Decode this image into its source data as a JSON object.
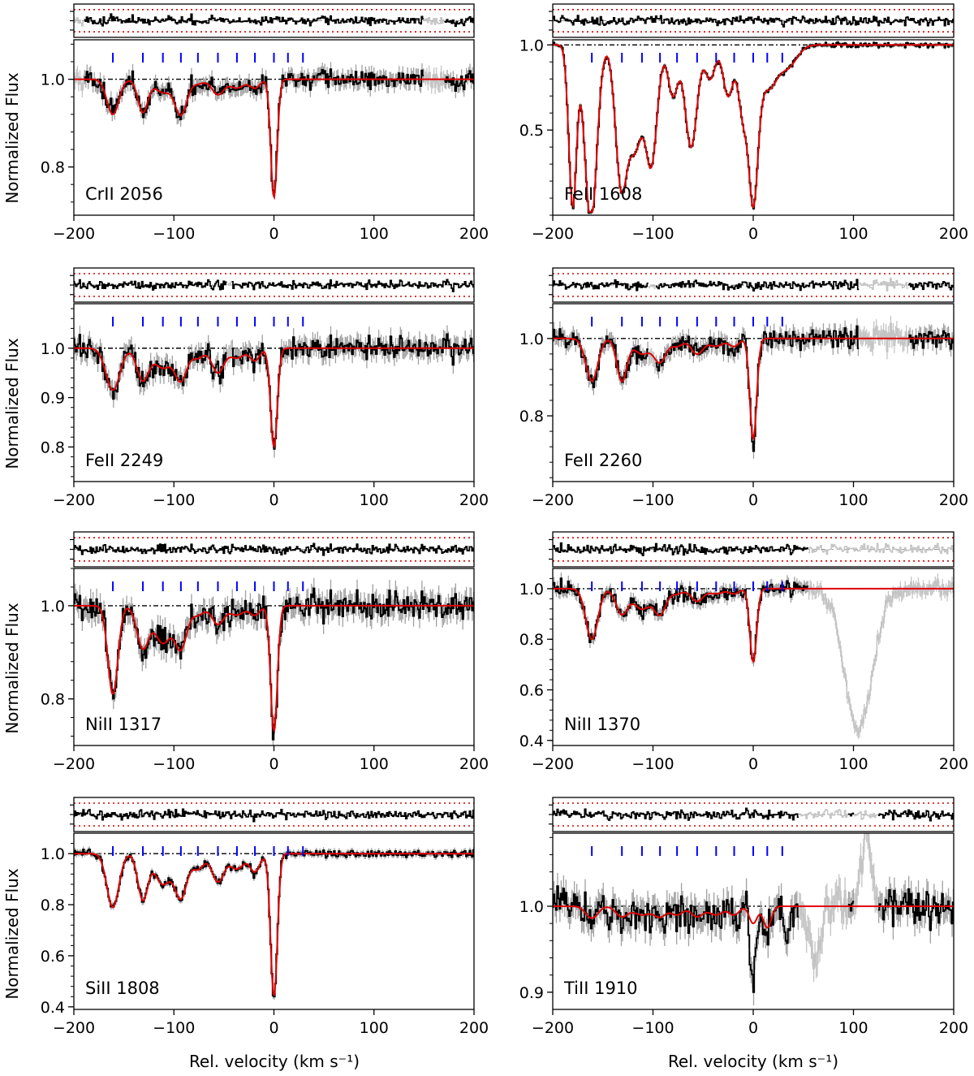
{
  "figure": {
    "xlabel": "Rel. velocity  (km s⁻¹)",
    "ylabel": "Normalized Flux"
  },
  "style": {
    "flux_color": "#000000",
    "error_color": "#a0a0a0",
    "masked_color": "#c4c4c4",
    "model_color": "#e00000",
    "marker_color": "#0000ff",
    "residual_bound_color": "#d00000",
    "continuum_color": "#000000"
  },
  "chart_data": [
    {
      "type": "line",
      "line_label": "CrII 2056",
      "xlim": [
        -200,
        200
      ],
      "ylim": [
        0.69,
        1.09
      ],
      "yticks": [
        0.8,
        1.0
      ],
      "ytick_labels": [
        "0.8",
        "1.0"
      ],
      "xticks": [
        -200,
        -100,
        0,
        100,
        200
      ],
      "xtick_labels": [
        "−200",
        "−100",
        "0",
        "100",
        "200"
      ],
      "component_velocities": [
        -161,
        -131,
        -111,
        -93,
        -76,
        -56,
        -37,
        -19,
        0,
        14,
        29
      ],
      "model_components": [
        {
          "v": -161,
          "depth": 0.08,
          "sigma": 6
        },
        {
          "v": -131,
          "depth": 0.075,
          "sigma": 5
        },
        {
          "v": -111,
          "depth": 0.03,
          "sigma": 8
        },
        {
          "v": -93,
          "depth": 0.08,
          "sigma": 6
        },
        {
          "v": -76,
          "depth": 0.01,
          "sigma": 6
        },
        {
          "v": -56,
          "depth": 0.035,
          "sigma": 6
        },
        {
          "v": -37,
          "depth": 0.02,
          "sigma": 7
        },
        {
          "v": -19,
          "depth": 0.02,
          "sigma": 5
        },
        {
          "v": 0,
          "depth": 0.27,
          "sigma": 3.2
        }
      ],
      "noise": 0.018,
      "masked_ranges": [
        [
          -200,
          -190
        ],
        [
          150,
          170
        ]
      ]
    },
    {
      "type": "line",
      "line_label": "FeII 1608",
      "xlim": [
        -200,
        200
      ],
      "ylim": [
        0.0,
        1.03
      ],
      "yticks": [
        0.5,
        1.0
      ],
      "ytick_labels": [
        "0.5",
        "1.0"
      ],
      "xticks": [
        -200,
        -100,
        0,
        100,
        200
      ],
      "xtick_labels": [
        "−200",
        "−100",
        "0",
        "100",
        "200"
      ],
      "component_velocities": [
        -161,
        -131,
        -111,
        -93,
        -76,
        -56,
        -37,
        -19,
        0,
        14,
        29
      ],
      "model_components": [
        {
          "v": -180,
          "depth": 0.95,
          "sigma": 4
        },
        {
          "v": -162,
          "depth": 1.05,
          "sigma": 6
        },
        {
          "v": -131,
          "depth": 0.85,
          "sigma": 6
        },
        {
          "v": -118,
          "depth": 0.6,
          "sigma": 8
        },
        {
          "v": -102,
          "depth": 0.7,
          "sigma": 6
        },
        {
          "v": -80,
          "depth": 0.3,
          "sigma": 5
        },
        {
          "v": -62,
          "depth": 0.6,
          "sigma": 6
        },
        {
          "v": -43,
          "depth": 0.2,
          "sigma": 5
        },
        {
          "v": -25,
          "depth": 0.3,
          "sigma": 5
        },
        {
          "v": -10,
          "depth": 0.4,
          "sigma": 5
        },
        {
          "v": 0,
          "depth": 0.95,
          "sigma": 5
        },
        {
          "v": 15,
          "depth": 0.25,
          "sigma": 9
        },
        {
          "v": 35,
          "depth": 0.12,
          "sigma": 9
        }
      ],
      "noise": 0.012,
      "masked_ranges": []
    },
    {
      "type": "line",
      "line_label": "FeII 2249",
      "xlim": [
        -200,
        200
      ],
      "ylim": [
        0.73,
        1.09
      ],
      "yticks": [
        0.8,
        0.9,
        1.0
      ],
      "ytick_labels": [
        "0.8",
        "0.9",
        "1.0"
      ],
      "xticks": [
        -200,
        -100,
        0,
        100,
        200
      ],
      "xtick_labels": [
        "−200",
        "−100",
        "0",
        "100",
        "200"
      ],
      "component_velocities": [
        -161,
        -131,
        -111,
        -93,
        -76,
        -56,
        -37,
        -19,
        0,
        14,
        29
      ],
      "model_components": [
        {
          "v": -161,
          "depth": 0.085,
          "sigma": 7
        },
        {
          "v": -131,
          "depth": 0.065,
          "sigma": 6
        },
        {
          "v": -111,
          "depth": 0.04,
          "sigma": 8
        },
        {
          "v": -93,
          "depth": 0.065,
          "sigma": 6
        },
        {
          "v": -76,
          "depth": 0.02,
          "sigma": 6
        },
        {
          "v": -56,
          "depth": 0.05,
          "sigma": 6
        },
        {
          "v": -37,
          "depth": 0.02,
          "sigma": 7
        },
        {
          "v": -19,
          "depth": 0.025,
          "sigma": 5
        },
        {
          "v": 0,
          "depth": 0.2,
          "sigma": 3.4
        }
      ],
      "noise": 0.02,
      "masked_ranges": [
        [
          -47,
          -42
        ]
      ]
    },
    {
      "type": "line",
      "line_label": "FeII 2260",
      "xlim": [
        -200,
        200
      ],
      "ylim": [
        0.63,
        1.09
      ],
      "yticks": [
        0.8,
        1.0
      ],
      "ytick_labels": [
        "0.8",
        "1.0"
      ],
      "xticks": [
        -200,
        -100,
        0,
        100,
        200
      ],
      "xtick_labels": [
        "−200",
        "−100",
        "0",
        "100",
        "200"
      ],
      "component_velocities": [
        -161,
        -131,
        -111,
        -93,
        -76,
        -56,
        -37,
        -19,
        0,
        14,
        29
      ],
      "model_components": [
        {
          "v": -161,
          "depth": 0.11,
          "sigma": 6
        },
        {
          "v": -131,
          "depth": 0.11,
          "sigma": 5
        },
        {
          "v": -111,
          "depth": 0.04,
          "sigma": 8
        },
        {
          "v": -93,
          "depth": 0.06,
          "sigma": 6
        },
        {
          "v": -76,
          "depth": 0.02,
          "sigma": 6
        },
        {
          "v": -56,
          "depth": 0.04,
          "sigma": 6
        },
        {
          "v": -37,
          "depth": 0.02,
          "sigma": 7
        },
        {
          "v": -19,
          "depth": 0.02,
          "sigma": 5
        },
        {
          "v": 0,
          "depth": 0.26,
          "sigma": 3.4
        }
      ],
      "noise": 0.022,
      "masked_ranges": [
        [
          -105,
          -98
        ],
        [
          105,
          155
        ]
      ]
    },
    {
      "type": "line",
      "line_label": "NiII 1317",
      "xlim": [
        -200,
        200
      ],
      "ylim": [
        0.7,
        1.08
      ],
      "yticks": [
        0.8,
        1.0
      ],
      "ytick_labels": [
        "0.8",
        "1.0"
      ],
      "xticks": [
        -200,
        -100,
        0,
        100,
        200
      ],
      "xtick_labels": [
        "−200",
        "−100",
        "0",
        "100",
        "200"
      ],
      "component_velocities": [
        -161,
        -131,
        -111,
        -93,
        -76,
        -56,
        -37,
        -19,
        0,
        14,
        29
      ],
      "model_components": [
        {
          "v": -161,
          "depth": 0.19,
          "sigma": 5
        },
        {
          "v": -131,
          "depth": 0.09,
          "sigma": 6
        },
        {
          "v": -111,
          "depth": 0.08,
          "sigma": 8
        },
        {
          "v": -93,
          "depth": 0.09,
          "sigma": 6
        },
        {
          "v": -76,
          "depth": 0.02,
          "sigma": 6
        },
        {
          "v": -56,
          "depth": 0.04,
          "sigma": 6
        },
        {
          "v": -37,
          "depth": 0.02,
          "sigma": 7
        },
        {
          "v": -19,
          "depth": 0.02,
          "sigma": 5
        },
        {
          "v": 0,
          "depth": 0.27,
          "sigma": 3.4
        }
      ],
      "noise": 0.025,
      "masked_ranges": []
    },
    {
      "type": "line",
      "line_label": "NiII 1370",
      "xlim": [
        -200,
        200
      ],
      "ylim": [
        0.38,
        1.08
      ],
      "yticks": [
        0.4,
        0.6,
        0.8,
        1.0
      ],
      "ytick_labels": [
        "0.4",
        "0.6",
        "0.8",
        "1.0"
      ],
      "xticks": [
        -200,
        -100,
        0,
        100,
        200
      ],
      "xtick_labels": [
        "−200",
        "−100",
        "0",
        "100",
        "200"
      ],
      "component_velocities": [
        -161,
        -131,
        -111,
        -93,
        -76,
        -56,
        -37,
        -19,
        0,
        14,
        29
      ],
      "model_components": [
        {
          "v": -161,
          "depth": 0.2,
          "sigma": 6
        },
        {
          "v": -131,
          "depth": 0.1,
          "sigma": 6
        },
        {
          "v": -111,
          "depth": 0.08,
          "sigma": 8
        },
        {
          "v": -93,
          "depth": 0.1,
          "sigma": 6
        },
        {
          "v": -76,
          "depth": 0.02,
          "sigma": 6
        },
        {
          "v": -56,
          "depth": 0.05,
          "sigma": 6
        },
        {
          "v": -37,
          "depth": 0.02,
          "sigma": 7
        },
        {
          "v": -19,
          "depth": 0.02,
          "sigma": 5
        },
        {
          "v": 0,
          "depth": 0.29,
          "sigma": 3.4
        }
      ],
      "noise": 0.025,
      "masked_ranges": [
        [
          55,
          200
        ]
      ],
      "masked_features": [
        {
          "v": 105,
          "depth": 0.56,
          "sigma": 14
        }
      ]
    },
    {
      "type": "line",
      "line_label": "SiII 1808",
      "xlim": [
        -200,
        200
      ],
      "ylim": [
        0.39,
        1.08
      ],
      "yticks": [
        0.4,
        0.6,
        0.8,
        1.0
      ],
      "ytick_labels": [
        "0.4",
        "0.6",
        "0.8",
        "1.0"
      ],
      "xticks": [
        -200,
        -100,
        0,
        100,
        200
      ],
      "xtick_labels": [
        "−200",
        "−100",
        "0",
        "100",
        "200"
      ],
      "component_velocities": [
        -161,
        -131,
        -111,
        -93,
        -76,
        -56,
        -37,
        -19,
        0,
        14,
        29
      ],
      "model_components": [
        {
          "v": -161,
          "depth": 0.21,
          "sigma": 6
        },
        {
          "v": -131,
          "depth": 0.18,
          "sigma": 5
        },
        {
          "v": -111,
          "depth": 0.12,
          "sigma": 8
        },
        {
          "v": -93,
          "depth": 0.17,
          "sigma": 6
        },
        {
          "v": -76,
          "depth": 0.06,
          "sigma": 6
        },
        {
          "v": -56,
          "depth": 0.11,
          "sigma": 6
        },
        {
          "v": -37,
          "depth": 0.06,
          "sigma": 7
        },
        {
          "v": -19,
          "depth": 0.07,
          "sigma": 5
        },
        {
          "v": 0,
          "depth": 0.56,
          "sigma": 3.4
        }
      ],
      "noise": 0.013,
      "masked_ranges": []
    },
    {
      "type": "line",
      "line_label": "TiII 1910",
      "xlim": [
        -200,
        200
      ],
      "ylim": [
        0.88,
        1.085
      ],
      "yticks": [
        0.9,
        1.0
      ],
      "ytick_labels": [
        "0.9",
        "1.0"
      ],
      "xticks": [
        -200,
        -100,
        0,
        100,
        200
      ],
      "xtick_labels": [
        "−200",
        "−100",
        "0",
        "100",
        "200"
      ],
      "component_velocities": [
        -161,
        -131,
        -111,
        -93,
        -76,
        -56,
        -37,
        -19,
        0,
        14,
        29
      ],
      "model_components": [
        {
          "v": -161,
          "depth": 0.014,
          "sigma": 6
        },
        {
          "v": -131,
          "depth": 0.012,
          "sigma": 6
        },
        {
          "v": -111,
          "depth": 0.01,
          "sigma": 8
        },
        {
          "v": -93,
          "depth": 0.012,
          "sigma": 6
        },
        {
          "v": -76,
          "depth": 0.01,
          "sigma": 6
        },
        {
          "v": -56,
          "depth": 0.012,
          "sigma": 6
        },
        {
          "v": -37,
          "depth": 0.01,
          "sigma": 7
        },
        {
          "v": -19,
          "depth": 0.01,
          "sigma": 5
        },
        {
          "v": 0,
          "depth": 0.02,
          "sigma": 4
        },
        {
          "v": 14,
          "depth": 0.025,
          "sigma": 4
        }
      ],
      "noise": 0.017,
      "masked_ranges": [
        [
          45,
          95
        ],
        [
          100,
          125
        ]
      ],
      "data_features": [
        {
          "v": 0,
          "depth": 0.07,
          "sigma": 3
        },
        {
          "v": 33,
          "depth": 0.05,
          "sigma": 2
        }
      ],
      "masked_features": [
        {
          "v": 62,
          "depth": 0.06,
          "sigma": 6
        },
        {
          "v": 113,
          "depth": -0.09,
          "sigma": 5
        }
      ]
    }
  ]
}
